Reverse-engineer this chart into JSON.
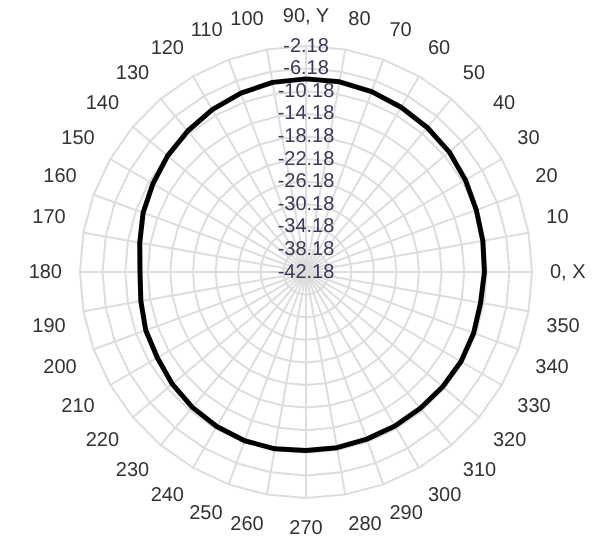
{
  "chart_data": {
    "type": "radar",
    "categories": [
      "90, Y",
      "80",
      "70",
      "60",
      "50",
      "40",
      "30",
      "20",
      "10",
      "0, X",
      "350",
      "340",
      "330",
      "320",
      "310",
      "300",
      "290",
      "280",
      "270",
      "260",
      "250",
      "240",
      "230",
      "220",
      "210",
      "200",
      "190",
      "180",
      "170",
      "160",
      "150",
      "140",
      "130",
      "120",
      "110",
      "100"
    ],
    "series": [
      {
        "color": "#000000",
        "marker": "none",
        "line_style": "solid",
        "values": [
          -8.0,
          -8.0,
          -8.2,
          -8.5,
          -8.8,
          -9.1,
          -9.6,
          -10.1,
          -10.4,
          -10.6,
          -10.8,
          -10.6,
          -10.5,
          -10.6,
          -10.7,
          -10.7,
          -10.7,
          -10.6,
          -10.6,
          -10.4,
          -10.4,
          -10.6,
          -10.9,
          -11.3,
          -11.8,
          -12.0,
          -12.5,
          -12.8,
          -12.3,
          -11.5,
          -10.9,
          -10.2,
          -9.6,
          -9.0,
          -8.5,
          -8.1
        ]
      }
    ],
    "ylim": [
      -42.18,
      -2.18
    ],
    "yticks": [
      -42.18,
      -38.18,
      -34.18,
      -30.18,
      -26.18,
      -22.18,
      -18.18,
      -14.18,
      -10.18,
      -6.18,
      -2.18
    ],
    "grid": true
  }
}
